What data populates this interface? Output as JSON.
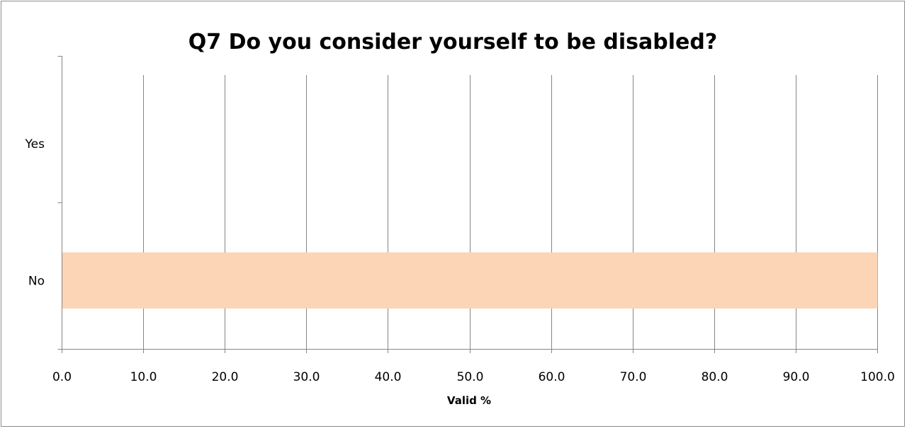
{
  "chart_data": {
    "type": "bar",
    "orientation": "horizontal",
    "title": "Q7 Do you consider yourself to be disabled?",
    "xlabel": "Valid %",
    "ylabel": "",
    "categories": [
      "Yes",
      "No"
    ],
    "values": [
      0.0,
      100.0
    ],
    "xlim": [
      0,
      100
    ],
    "xticks": [
      "0.0",
      "10.0",
      "20.0",
      "30.0",
      "40.0",
      "50.0",
      "60.0",
      "70.0",
      "80.0",
      "90.0",
      "100.0"
    ],
    "grid": "vertical",
    "legend": "none",
    "colors": {
      "bar": "#fbd5b5",
      "grid": "#868686",
      "axis": "#868686"
    }
  }
}
